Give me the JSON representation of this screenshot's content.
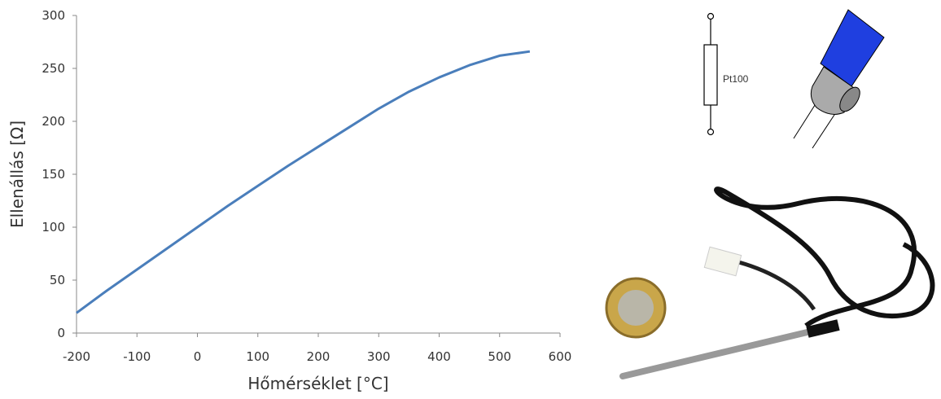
{
  "chart_data": {
    "type": "line",
    "x": [
      -200,
      -150,
      -100,
      -50,
      0,
      50,
      100,
      150,
      200,
      250,
      300,
      350,
      400,
      450,
      500,
      550
    ],
    "values": [
      19,
      40,
      60,
      80,
      100,
      120,
      139,
      158,
      176,
      194,
      212,
      228,
      241.5,
      253,
      262,
      266
    ],
    "color": "#4a7ebb",
    "xlabel": "Hőmérséklet [°C]",
    "ylabel": "Ellenállás [Ω]",
    "xlim": [
      -200,
      600
    ],
    "xticks": [
      -200,
      -100,
      0,
      100,
      200,
      300,
      400,
      500,
      600
    ],
    "ylim": [
      0,
      300
    ],
    "yticks": [
      0,
      50,
      100,
      150,
      200,
      250,
      300
    ],
    "grid": false
  },
  "illustration": {
    "resistor_label": "Pt100"
  }
}
